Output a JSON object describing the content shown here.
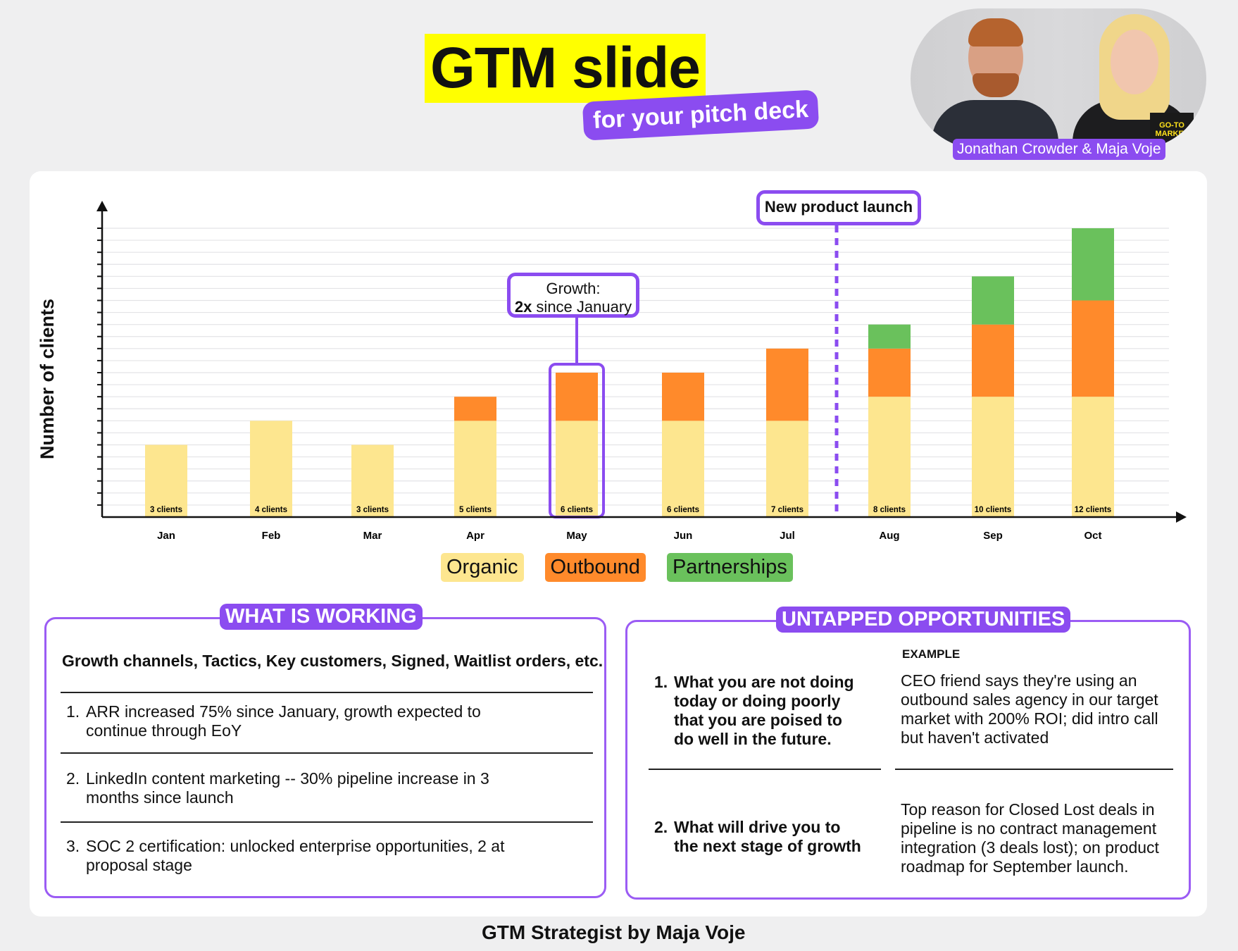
{
  "header": {
    "title": "GTM slide",
    "subtitle": "for your pitch deck",
    "authors": "Jonathan Crowder & Maja Voje",
    "book_label": "GO-TO MARKET"
  },
  "chart_data": {
    "type": "bar",
    "stacked": true,
    "ylabel": "Number of clients",
    "xlabel": "",
    "categories": [
      "Jan",
      "Feb",
      "Mar",
      "Apr",
      "May",
      "Jun",
      "Jul",
      "Aug",
      "Sep",
      "Oct"
    ],
    "series": [
      {
        "name": "Organic",
        "color": "#fde68f",
        "values": [
          3,
          4,
          3,
          4,
          4,
          4,
          4,
          5,
          5,
          5
        ]
      },
      {
        "name": "Outbound",
        "color": "#ff8a2b",
        "values": [
          0,
          0,
          0,
          1,
          2,
          2,
          3,
          2,
          3,
          4
        ]
      },
      {
        "name": "Partnerships",
        "color": "#6ac15c",
        "values": [
          0,
          0,
          0,
          0,
          0,
          0,
          0,
          1,
          2,
          3
        ]
      }
    ],
    "data_labels": [
      "3 clients",
      "4 clients",
      "3 clients",
      "5 clients",
      "6 clients",
      "6 clients",
      "7 clients",
      "8 clients",
      "10 clients",
      "12 clients"
    ],
    "ylim": [
      0,
      12
    ],
    "grid": true,
    "legend": "bottom",
    "annotations": {
      "launch_label": "New product launch",
      "growth_line1": "Growth:",
      "growth_bold": "2x",
      "growth_rest": " since January"
    }
  },
  "working": {
    "title": "WHAT IS WORKING",
    "subtitle": "Growth channels, Tactics, Key customers, Signed, Waitlist orders, etc.",
    "items": [
      {
        "num": "1.",
        "text": "ARR increased 75% since January, growth expected to continue through EoY"
      },
      {
        "num": "2.",
        "text": "LinkedIn content marketing -- 30% pipeline increase in 3 months since launch"
      },
      {
        "num": "3.",
        "text": "SOC 2 certification: unlocked enterprise opportunities, 2 at proposal stage"
      }
    ]
  },
  "opportunities": {
    "title": "UNTAPPED OPPORTUNITIES",
    "example_label": "EXAMPLE",
    "items": [
      {
        "num": "1.",
        "prompt": "What you are not doing today or doing poorly that you are poised to do well in the future.",
        "example": "CEO friend says they're using an outbound sales agency in our target market with 200% ROI; did intro call but haven't activated"
      },
      {
        "num": "2.",
        "prompt": "What will drive you to the next stage of growth",
        "example": "Top reason for Closed Lost deals in pipeline is no contract management integration (3 deals lost); on product roadmap for September launch."
      }
    ]
  },
  "footer": "GTM Strategist by Maja Voje"
}
